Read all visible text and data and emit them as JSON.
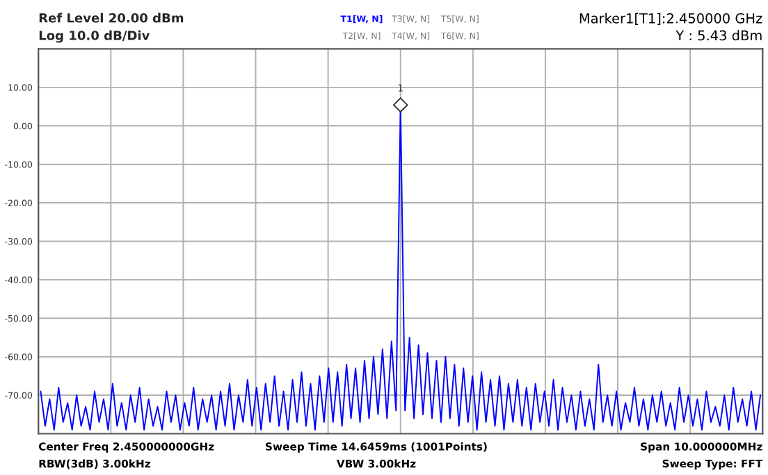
{
  "chart_data": {
    "type": "line",
    "title": "Ref Level 20.00 dBm",
    "subtitle": "Log 10.0 dB/Div",
    "categories": [
      null,
      null,
      null,
      null,
      null,
      null,
      null,
      null,
      null,
      null,
      null,
      null,
      null,
      null,
      null,
      null,
      null,
      null,
      null,
      null,
      null,
      null,
      null,
      null,
      null,
      null,
      null,
      null,
      null,
      null,
      null,
      null,
      null,
      null,
      null,
      null,
      null,
      null,
      null,
      null,
      null,
      null,
      null,
      null,
      null,
      null,
      null,
      null,
      null,
      null,
      null,
      null,
      null,
      null,
      null,
      null,
      null,
      null,
      null,
      null,
      null,
      null,
      null,
      null,
      null,
      null,
      null,
      null,
      null,
      null,
      null,
      null,
      null,
      null,
      null,
      null,
      null,
      null,
      null,
      null,
      null,
      null,
      null,
      null,
      null,
      null,
      null,
      null,
      null,
      null,
      null,
      null,
      null,
      null,
      null,
      null,
      null,
      null,
      null,
      null,
      null,
      null,
      null,
      null,
      null,
      null,
      null,
      null,
      null,
      null,
      null,
      null,
      null,
      null,
      null,
      null,
      null,
      null,
      null,
      null,
      null,
      null,
      null,
      null,
      null,
      null,
      null,
      null,
      null,
      null,
      null,
      null,
      null,
      null,
      null,
      null,
      null,
      null,
      null,
      null,
      null,
      null,
      null,
      null,
      null,
      null,
      null,
      null,
      null,
      null,
      null,
      null,
      null,
      null,
      null,
      null,
      null,
      null,
      null,
      null,
      null
    ],
    "series": [
      {
        "name": "T1[W, N]",
        "color": "#0000ff",
        "values": [
          -69,
          -78,
          -71,
          -79,
          -68,
          -77,
          -72,
          -79,
          -70,
          -78,
          -73,
          -79,
          -69,
          -77,
          -71,
          -79,
          -67,
          -78,
          -72,
          -79,
          -70,
          -77,
          -68,
          -79,
          -71,
          -78,
          -73,
          -79,
          -69,
          -77,
          -70,
          -79,
          -72,
          -78,
          -68,
          -79,
          -71,
          -77,
          -70,
          -79,
          -69,
          -78,
          -67,
          -79,
          -70,
          -77,
          -66,
          -78,
          -68,
          -79,
          -67,
          -77,
          -65,
          -78,
          -69,
          -79,
          -66,
          -77,
          -64,
          -78,
          -67,
          -79,
          -65,
          -77,
          -63,
          -77,
          -64,
          -78,
          -62,
          -76,
          -63,
          -77,
          -61,
          -76,
          -60,
          -75,
          -58,
          -76,
          -56,
          -74,
          5.43,
          -74,
          -55,
          -76,
          -57,
          -75,
          -59,
          -76,
          -61,
          -77,
          -60,
          -76,
          -62,
          -78,
          -63,
          -77,
          -65,
          -79,
          -64,
          -77,
          -66,
          -78,
          -65,
          -79,
          -67,
          -77,
          -66,
          -78,
          -68,
          -79,
          -67,
          -77,
          -69,
          -78,
          -66,
          -79,
          -68,
          -77,
          -70,
          -79,
          -69,
          -78,
          -71,
          -79,
          -62,
          -77,
          -70,
          -78,
          -69,
          -79,
          -72,
          -77,
          -68,
          -78,
          -71,
          -79,
          -70,
          -77,
          -69,
          -78,
          -72,
          -79,
          -68,
          -77,
          -70,
          -78,
          -71,
          -79,
          -69,
          -77,
          -73,
          -78,
          -70,
          -79,
          -68,
          -77,
          -71,
          -78,
          -69,
          -79,
          -70
        ]
      }
    ],
    "ylim": [
      -80,
      20
    ],
    "yticks": [
      {
        "value": 10,
        "label": "10.00"
      },
      {
        "value": 0,
        "label": "0.00"
      },
      {
        "value": -10,
        "label": "-10.00"
      },
      {
        "value": -20,
        "label": "-20.00"
      },
      {
        "value": -30,
        "label": "-30.00"
      },
      {
        "value": -40,
        "label": "-40.00"
      },
      {
        "value": -50,
        "label": "-50.00"
      },
      {
        "value": -60,
        "label": "-60.00"
      },
      {
        "value": -70,
        "label": "-70.00"
      }
    ],
    "tick_labels": "y",
    "grid": true,
    "marker": "none",
    "line_style": "solid",
    "annotations": [
      "T3[W, N]",
      "T5[W, N]",
      "T2[W, N]",
      "T4[W, N]",
      "T6[W, N]",
      "Marker1[T1]:2.450000 GHz",
      "Y : 5.43 dBm",
      "Center Freq 2.450000000GHz",
      "Sweep Time 14.6459ms (1001Points)",
      "Span 10.000000MHz",
      "RBW(3dB) 3.00kHz",
      "VBW 3.00kHz",
      "Sweep Type: FFT",
      {
        "text": "1",
        "y": 5.43
      }
    ]
  }
}
